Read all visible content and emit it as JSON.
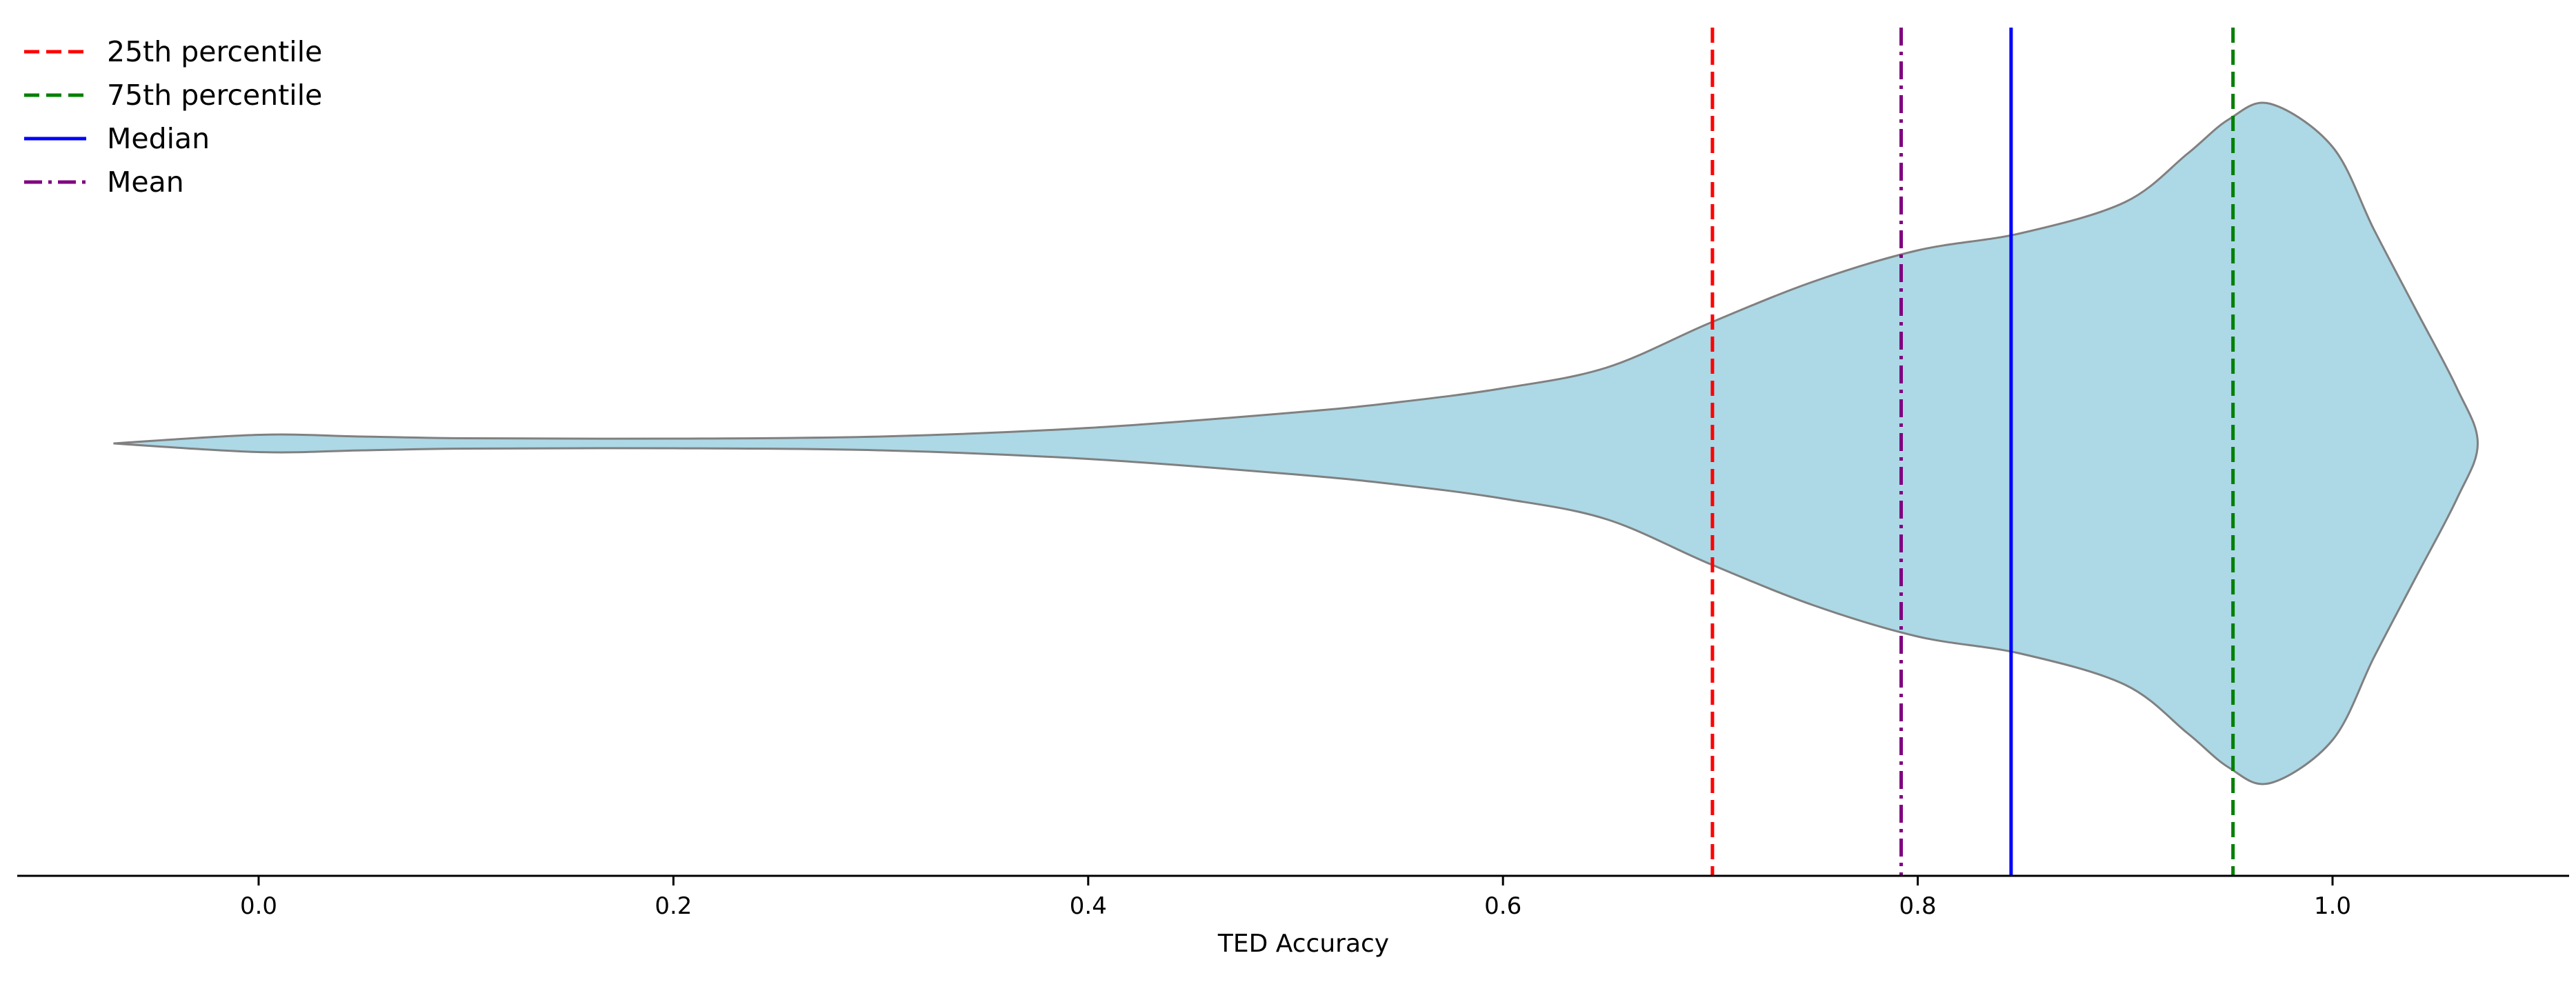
{
  "chart_data": {
    "type": "violin",
    "title": "",
    "xlabel": "TED Accuracy",
    "ylabel": "",
    "xlim": [
      -0.12,
      1.11
    ],
    "grid": false,
    "legend_position": "top-left",
    "xticks": [
      {
        "value": 0.0,
        "label": "0.0"
      },
      {
        "value": 0.2,
        "label": "0.2"
      },
      {
        "value": 0.4,
        "label": "0.4"
      },
      {
        "value": 0.6,
        "label": "0.6"
      },
      {
        "value": 0.8,
        "label": "0.8"
      },
      {
        "value": 1.0,
        "label": "1.0"
      }
    ],
    "violin": {
      "fill": "#add8e6",
      "stroke": "#808080",
      "density": [
        [
          -0.07,
          0.0
        ],
        [
          0.0,
          0.025
        ],
        [
          0.05,
          0.02
        ],
        [
          0.1,
          0.015
        ],
        [
          0.2,
          0.014
        ],
        [
          0.3,
          0.02
        ],
        [
          0.4,
          0.045
        ],
        [
          0.5,
          0.09
        ],
        [
          0.55,
          0.12
        ],
        [
          0.6,
          0.16
        ],
        [
          0.65,
          0.22
        ],
        [
          0.7,
          0.35
        ],
        [
          0.75,
          0.47
        ],
        [
          0.8,
          0.56
        ],
        [
          0.85,
          0.61
        ],
        [
          0.9,
          0.7
        ],
        [
          0.93,
          0.84
        ],
        [
          0.95,
          0.94
        ],
        [
          0.97,
          0.985
        ],
        [
          1.0,
          0.86
        ],
        [
          1.02,
          0.62
        ],
        [
          1.04,
          0.39
        ],
        [
          1.06,
          0.16
        ],
        [
          1.07,
          0.0
        ]
      ]
    },
    "reference_lines": [
      {
        "name": "25th percentile",
        "value": 0.701,
        "color": "#ff0000",
        "style": "dashed"
      },
      {
        "name": "75th percentile",
        "value": 0.952,
        "color": "#008000",
        "style": "dashed"
      },
      {
        "name": "Median",
        "value": 0.845,
        "color": "#0000ff",
        "style": "solid"
      },
      {
        "name": "Mean",
        "value": 0.792,
        "color": "#800080",
        "style": "dashdot"
      }
    ],
    "legend": [
      {
        "label": "25th percentile",
        "color": "#ff0000",
        "style": "dashed"
      },
      {
        "label": "75th percentile",
        "color": "#008000",
        "style": "dashed"
      },
      {
        "label": "Median",
        "color": "#0000ff",
        "style": "solid"
      },
      {
        "label": "Mean",
        "color": "#800080",
        "style": "dashdot"
      }
    ]
  }
}
